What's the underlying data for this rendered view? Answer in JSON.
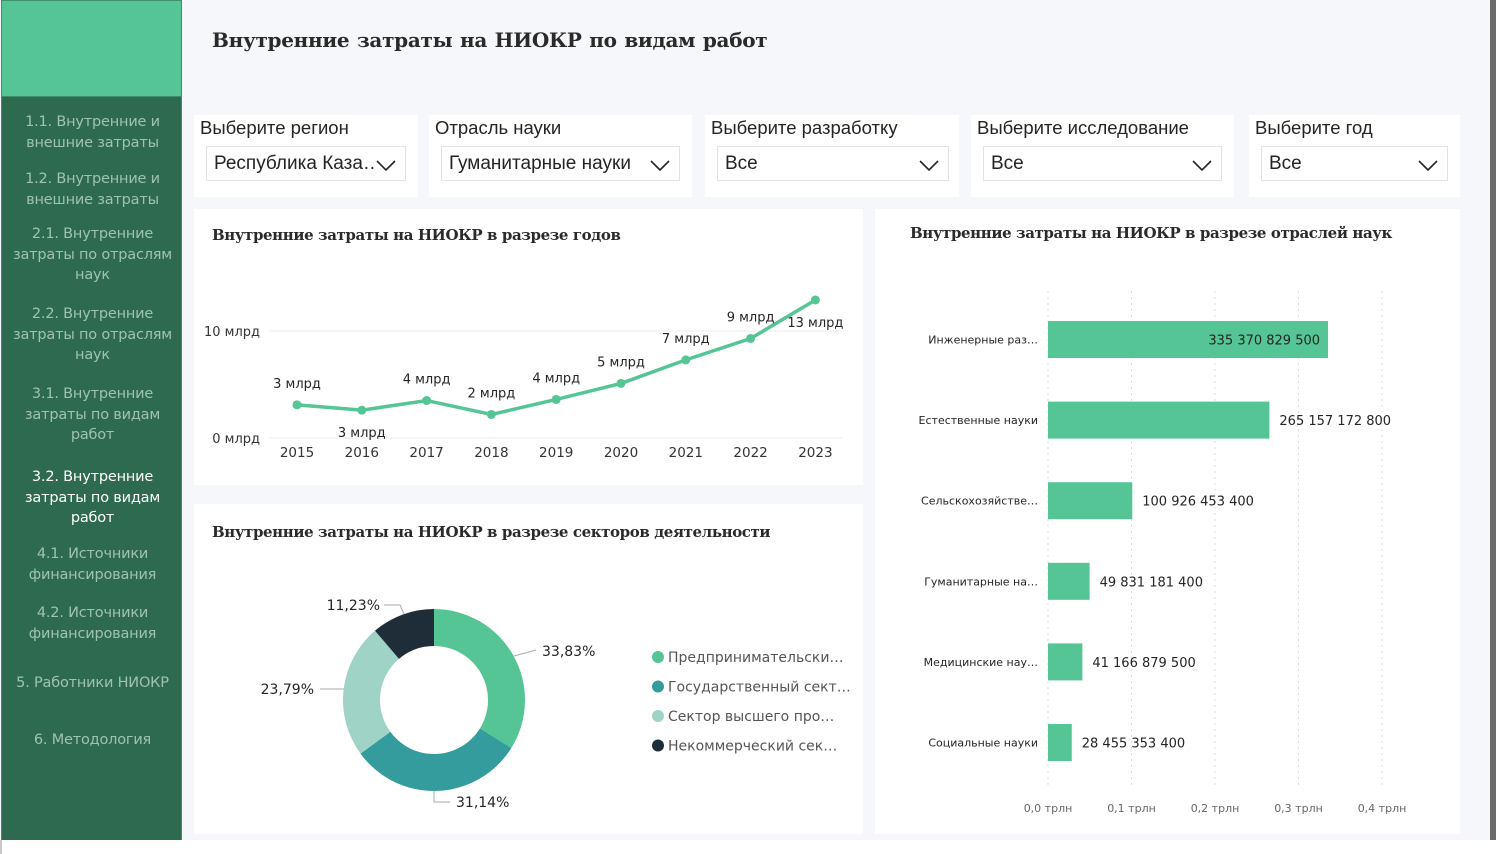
{
  "header": {
    "title": "Внутренние  затраты на НИОКР по видам работ"
  },
  "sidebar": {
    "items": [
      {
        "label": "1.1. Внутренние и внешние затраты",
        "lines": [
          "1.1. Внутренние и",
          "внешние затраты"
        ],
        "active": false
      },
      {
        "label": "1.2. Внутренние и внешние затраты",
        "lines": [
          "1.2. Внутренние и",
          "внешние затраты"
        ],
        "active": false
      },
      {
        "label": "2.1. Внутренние затраты по отраслям наук",
        "lines": [
          "2.1. Внутренние",
          "затраты по отраслям",
          "наук"
        ],
        "active": false
      },
      {
        "label": "2.2. Внутренние затраты по отраслям наук",
        "lines": [
          "2.2. Внутренние",
          "затраты по отраслям",
          "наук"
        ],
        "active": false
      },
      {
        "label": "3.1. Внутренние затраты по видам работ",
        "lines": [
          "3.1. Внутренние",
          "затраты по видам",
          "работ"
        ],
        "active": false
      },
      {
        "label": "3.2. Внутренние затраты по видам работ",
        "lines": [
          "3.2. Внутренние",
          "затраты по видам",
          "работ"
        ],
        "active": true
      },
      {
        "label": "4.1. Источники финансирования",
        "lines": [
          "4.1. Источники",
          "финансирования"
        ],
        "active": false
      },
      {
        "label": "4.2. Источники финансирования",
        "lines": [
          "4.2. Источники",
          "финансирования"
        ],
        "active": false
      },
      {
        "label": "5. Работники НИОКР",
        "lines": [
          "5. Работники НИОКР"
        ],
        "active": false
      },
      {
        "label": "6. Методология",
        "lines": [
          "6. Методология"
        ],
        "active": false
      }
    ]
  },
  "filters": [
    {
      "label": "Выберите регион",
      "value": "Республика Каза…",
      "icon": "chevron-down-icon"
    },
    {
      "label": "Отрасль науки",
      "value": "Гуманитарные науки",
      "icon": "chevron-down-icon"
    },
    {
      "label": "Выберите разработку",
      "value": "Все",
      "icon": "chevron-down-icon"
    },
    {
      "label": "Выберите исследование",
      "value": "Все",
      "icon": "chevron-down-icon"
    },
    {
      "label": "Выберите год",
      "value": "Все",
      "icon": "chevron-down-icon"
    }
  ],
  "colors": {
    "accent": "#55c595",
    "sidebar_bg": "#2e6a4f",
    "sidebar_text": "#9ec4b0",
    "sidebar_active_text": "#ffffff",
    "teal": "#349c9c",
    "light_teal": "#9fd3c6",
    "dark": "#1f2d38"
  },
  "chart_data": [
    {
      "type": "line",
      "title": "Внутренние  затраты на НИОКР в разрезе годов",
      "x": [
        "2015",
        "2016",
        "2017",
        "2018",
        "2019",
        "2020",
        "2021",
        "2022",
        "2023"
      ],
      "series": [
        {
          "name": "Внутренние затраты",
          "values": [
            3.1,
            2.6,
            3.5,
            2.2,
            3.6,
            5.1,
            7.3,
            9.3,
            12.9
          ],
          "color": "#55c595"
        }
      ],
      "data_labels": [
        "3 млрд",
        "3 млрд",
        "4 млрд",
        "2 млрд",
        "4 млрд",
        "5 млрд",
        "7 млрд",
        "9 млрд",
        "13 млрд"
      ],
      "label_position": [
        "above",
        "below",
        "above",
        "above",
        "above",
        "above",
        "above",
        "above",
        "below"
      ],
      "y_ticks": [
        0,
        10
      ],
      "y_tick_labels": [
        "0 млрд",
        "10 млрд"
      ],
      "unit": "млрд",
      "ylim": [
        0,
        13
      ],
      "xlabel": "",
      "ylabel": "",
      "grid": true
    },
    {
      "type": "pie",
      "subtype": "donut",
      "title": "Внутренние  затраты на НИОКР в разрезе секторов деятельности",
      "categories": [
        "Предпринимательски…",
        "Государственный сект…",
        "Сектор высшего про…",
        "Некоммерческий сек…"
      ],
      "values": [
        33.83,
        31.14,
        23.79,
        11.23
      ],
      "value_labels": [
        "33,83%",
        "31,14%",
        "23,79%",
        "11,23%"
      ],
      "colors": [
        "#55c595",
        "#349c9c",
        "#9fd3c6",
        "#1f2d38"
      ],
      "legend": "right"
    },
    {
      "type": "bar",
      "orientation": "horizontal",
      "title": "Внутренние  затраты на НИОКР в разрезе отраслей наук",
      "categories": [
        "Инженерные раз…",
        "Естественные науки",
        "Сельскохозяйстве…",
        "Гуманитарные на…",
        "Медицинские нау…",
        "Социальные науки"
      ],
      "values": [
        335370829500,
        265157172800,
        100926453400,
        49831181400,
        41166879500,
        28455353400
      ],
      "value_labels": [
        "335 370 829 500",
        "265 157 172 800",
        "100 926 453 400",
        "49 831 181 400",
        "41 166 879 500",
        "28 455 353 400"
      ],
      "x_ticks": [
        0,
        0.1,
        0.2,
        0.3,
        0.4
      ],
      "x_tick_labels": [
        "0,0 трлн",
        "0,1 трлн",
        "0,2 трлн",
        "0,3 трлн",
        "0,4 трлн"
      ],
      "xlim": [
        0,
        400000000000
      ],
      "color": "#55c595",
      "grid": true
    }
  ]
}
